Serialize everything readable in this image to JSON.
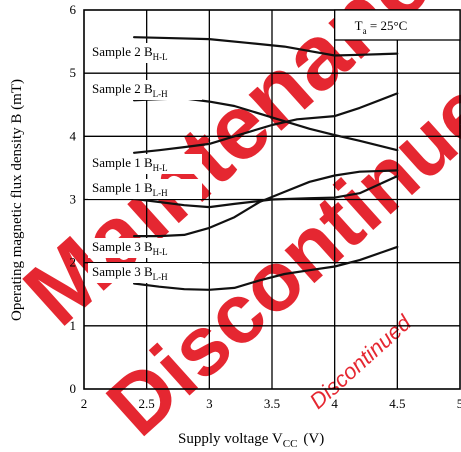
{
  "chart_data": {
    "type": "line",
    "xlabel": "Supply voltage  V",
    "xlabel_sub": "CC",
    "xlabel_unit": "(V)",
    "ylabel": "Operating magnetic flux density  B  (mT)",
    "xlim": [
      2,
      5
    ],
    "ylim": [
      0,
      6
    ],
    "x_ticks": [
      "2",
      "2.5",
      "3",
      "3.5",
      "4",
      "4.5",
      "5"
    ],
    "y_ticks": [
      "0",
      "1",
      "2",
      "3",
      "4",
      "5",
      "6"
    ],
    "grid": true,
    "annotation": {
      "text": "T",
      "sub": "a",
      "rest": " = 25°C"
    },
    "series": [
      {
        "name": "Sample 2  B",
        "sub": "H-L",
        "x": [
          2.4,
          2.6,
          3.0,
          3.3,
          3.6,
          3.8,
          4.0,
          4.2,
          4.5
        ],
        "y": [
          5.57,
          5.56,
          5.54,
          5.48,
          5.42,
          5.35,
          5.28,
          5.29,
          5.31
        ]
      },
      {
        "name": "Sample 2  B",
        "sub": "L-H",
        "x": [
          2.4,
          2.6,
          2.8,
          3.0,
          3.2,
          3.5,
          3.8,
          4.0,
          4.2,
          4.5
        ],
        "y": [
          4.57,
          4.59,
          4.6,
          4.55,
          4.48,
          4.3,
          4.12,
          4.02,
          3.93,
          3.78
        ]
      },
      {
        "name": "Sample 1  B",
        "sub": "H-L",
        "x": [
          2.4,
          2.6,
          2.8,
          3.0,
          3.2,
          3.5,
          3.7,
          4.0,
          4.2,
          4.5
        ],
        "y": [
          3.74,
          3.78,
          3.83,
          3.88,
          4.0,
          4.18,
          4.27,
          4.32,
          4.45,
          4.68
        ]
      },
      {
        "name": "Sample 1  B",
        "sub": "L-H",
        "x": [
          2.4,
          2.6,
          2.8,
          3.0,
          3.2,
          3.5,
          3.8,
          4.0,
          4.2,
          4.5
        ],
        "y": [
          3.01,
          2.96,
          2.91,
          2.88,
          2.93,
          3.0,
          3.02,
          3.03,
          3.1,
          3.37
        ]
      },
      {
        "name": "Sample 3  B",
        "sub": "H-L",
        "x": [
          2.4,
          2.6,
          2.8,
          3.0,
          3.2,
          3.4,
          3.6,
          3.8,
          4.0,
          4.2,
          4.5
        ],
        "y": [
          2.42,
          2.42,
          2.44,
          2.55,
          2.72,
          2.96,
          3.12,
          3.28,
          3.38,
          3.44,
          3.46
        ]
      },
      {
        "name": "Sample 3  B",
        "sub": "L-H",
        "x": [
          2.4,
          2.6,
          2.8,
          3.0,
          3.2,
          3.4,
          3.6,
          3.8,
          4.0,
          4.2,
          4.5
        ],
        "y": [
          1.67,
          1.62,
          1.58,
          1.57,
          1.6,
          1.72,
          1.82,
          1.88,
          1.94,
          2.04,
          2.25
        ]
      }
    ]
  },
  "watermark": {
    "line1": "Maintenance",
    "line2": "Discontinued",
    "small": "Discontinued",
    "color": "#e3101b"
  }
}
